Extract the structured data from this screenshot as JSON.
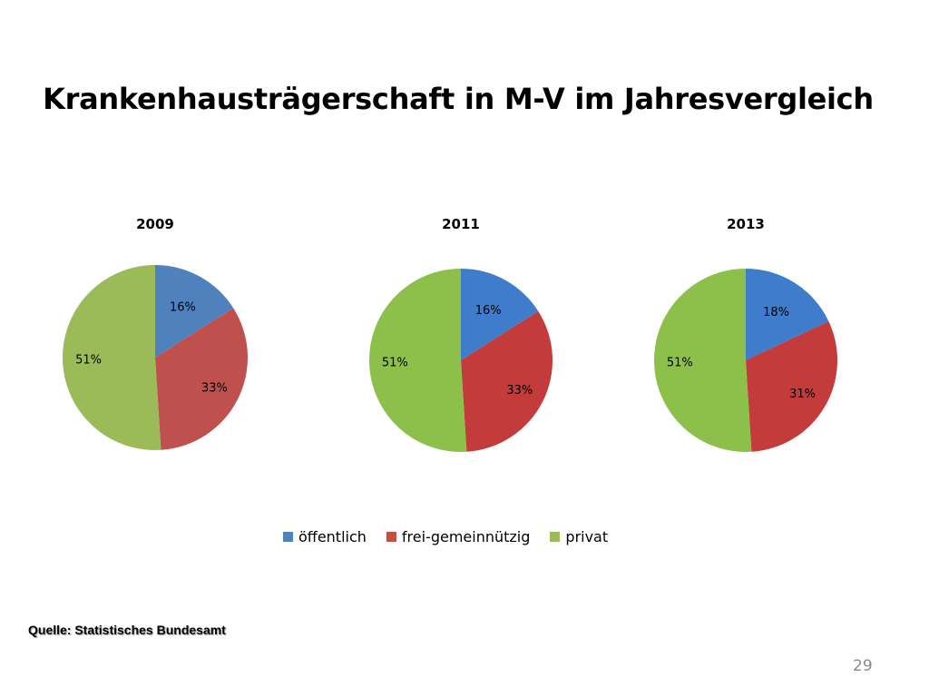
{
  "slide": {
    "title": "Krankenhausträgerschaft in M-V im Jahresvergleich",
    "source": "Quelle: Statistisches Bundesamt",
    "page_number": "29"
  },
  "legend": {
    "entries": [
      {
        "name": "öffentlich",
        "color": "#4f81bd"
      },
      {
        "name": "frei-gemeinnützig",
        "color": "#c0504d"
      },
      {
        "name": "privat",
        "color": "#9bbb59"
      }
    ],
    "placement": "bottom"
  },
  "chart_data": [
    {
      "type": "pie",
      "title": "2009",
      "categories": [
        "öffentlich",
        "frei-gemeinnützig",
        "privat"
      ],
      "values": [
        16,
        33,
        51
      ],
      "labels": [
        "16%",
        "33%",
        "51%"
      ],
      "colors": [
        "#4f81bd",
        "#c0504d",
        "#9bbb59"
      ]
    },
    {
      "type": "pie",
      "title": "2011",
      "categories": [
        "öffentlich",
        "frei-gemeinnützig",
        "privat"
      ],
      "values": [
        16,
        33,
        51
      ],
      "labels": [
        "16%",
        "33%",
        "51%"
      ],
      "colors": [
        "#3f7ccc",
        "#c33b3b",
        "#8cc04a"
      ]
    },
    {
      "type": "pie",
      "title": "2013",
      "categories": [
        "öffentlich",
        "frei-gemeinnützig",
        "privat"
      ],
      "values": [
        18,
        31,
        51
      ],
      "labels": [
        "18%",
        "31%",
        "51%"
      ],
      "colors": [
        "#3f7ccc",
        "#c33b3b",
        "#8cc04a"
      ]
    }
  ]
}
